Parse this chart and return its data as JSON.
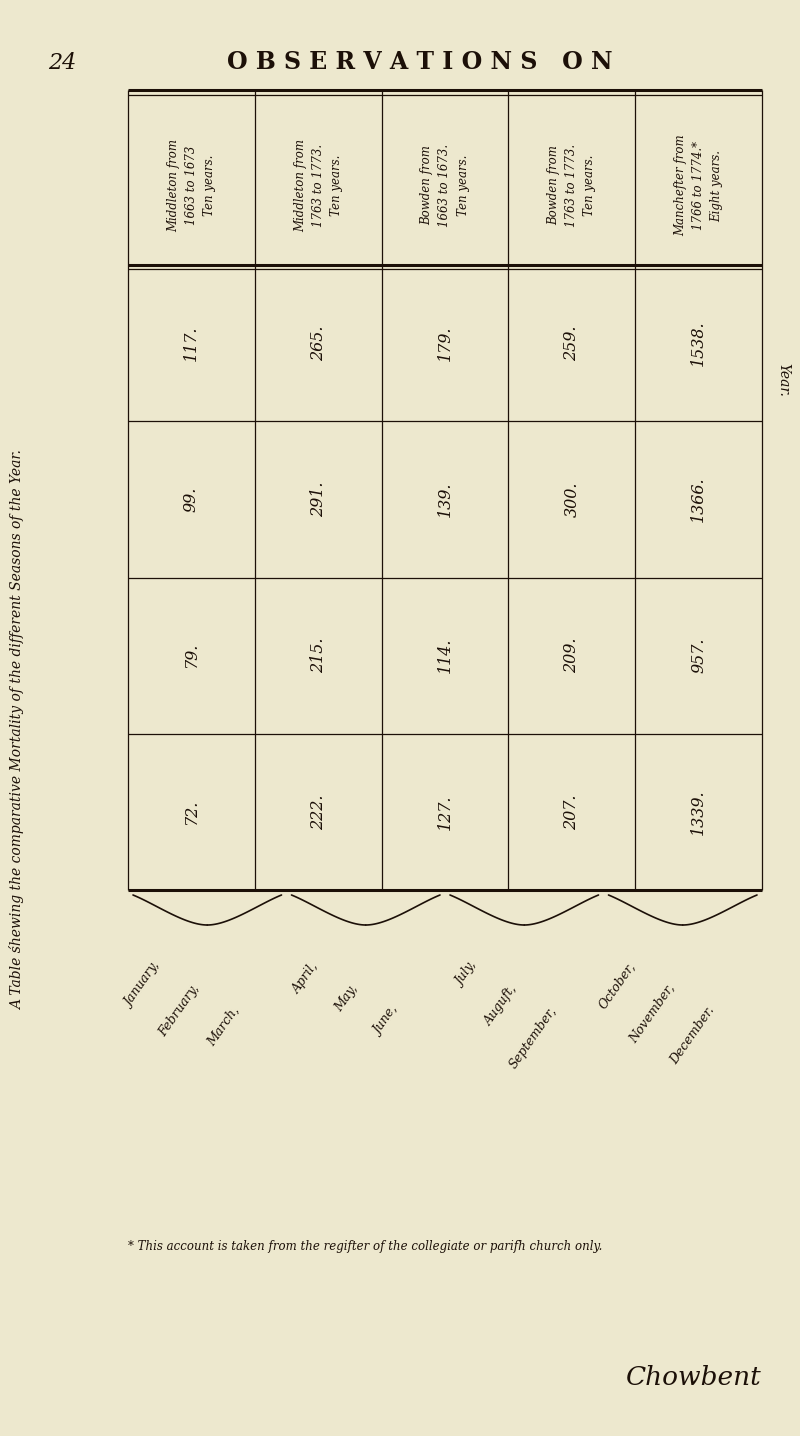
{
  "page_number": "24",
  "page_header": "OBSERVATIONS ON",
  "sidebar_text": "A Table śhewing the comparative Mortality of the different Seasons of the Year.",
  "right_sidebar": "Year.",
  "columns": [
    "Middleton from\n1663 to 1673\nTen years.",
    "Middleton from\n1763 to 1773.\nTen years.",
    "Bowden from\n1663 to 1673.\nTen years.",
    "Bowden from\n1763 to 1773.\nTen years.",
    "Manchefter from\n1766 to 1774.*\nEight years."
  ],
  "row_groups": [
    {
      "months": [
        "January,",
        "February,",
        "March,"
      ],
      "values": [
        "117.",
        "265.",
        "179.",
        "259.",
        "1538."
      ]
    },
    {
      "months": [
        "April,",
        "May,",
        "June,"
      ],
      "values": [
        "99.",
        "291.",
        "139.",
        "300.",
        "1366."
      ]
    },
    {
      "months": [
        "July,",
        "Auguft,",
        "September,"
      ],
      "values": [
        "79.",
        "215.",
        "114.",
        "209.",
        "957."
      ]
    },
    {
      "months": [
        "October,",
        "November,",
        "December."
      ],
      "values": [
        "72.",
        "222.",
        "127.",
        "207.",
        "1339."
      ]
    }
  ],
  "footnote": "* This account is taken from the regifter of the collegiate or parifh church only.",
  "footer_word": "Chowbent",
  "bg_color": "#ede8ce",
  "text_color": "#1c1008",
  "line_color": "#1c1008"
}
